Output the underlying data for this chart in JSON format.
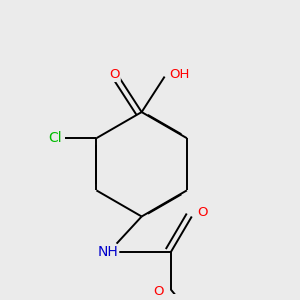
{
  "bg_color": "#ebebeb",
  "bond_color": "#000000",
  "atom_colors": {
    "O": "#ff0000",
    "N": "#0000cc",
    "Cl": "#00bb00",
    "H": "#808080"
  },
  "font_size": 9.5
}
